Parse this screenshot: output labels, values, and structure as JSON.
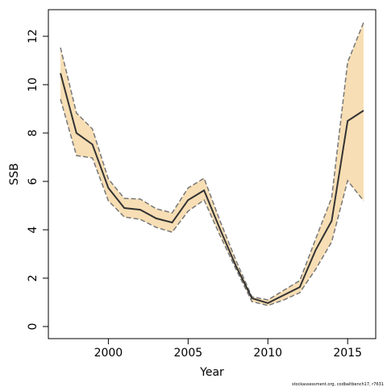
{
  "chart_data": {
    "type": "line",
    "xlabel": "Year",
    "ylabel": "SSB",
    "footnote": "stockassessment.org, codbaltbench17, r7631",
    "x": [
      1997,
      1998,
      1999,
      2000,
      2001,
      2002,
      2003,
      2004,
      2005,
      2006,
      2007,
      2008,
      2009,
      2010,
      2011,
      2012,
      2013,
      2014,
      2015,
      2016
    ],
    "values": [
      10.47,
      8.0,
      7.53,
      5.73,
      4.9,
      4.83,
      4.47,
      4.3,
      5.23,
      5.63,
      4.03,
      2.5,
      1.17,
      0.97,
      1.3,
      1.63,
      3.17,
      4.37,
      8.5,
      8.93
    ],
    "lower": [
      9.4,
      7.07,
      6.97,
      5.2,
      4.53,
      4.43,
      4.1,
      3.9,
      4.77,
      5.23,
      3.77,
      2.37,
      1.03,
      0.87,
      1.1,
      1.4,
      2.37,
      3.5,
      6.03,
      5.2
    ],
    "upper": [
      11.53,
      8.83,
      8.17,
      6.1,
      5.3,
      5.27,
      4.87,
      4.7,
      5.73,
      6.13,
      4.37,
      2.73,
      1.23,
      1.1,
      1.5,
      1.9,
      3.63,
      5.33,
      10.93,
      12.57
    ],
    "color": "#333333",
    "band_color": "#f7deb4",
    "band_line_color": "#777777",
    "xlim": [
      1996.24,
      2016.76
    ],
    "ylim": [
      -0.5,
      13.1
    ],
    "xticks": [
      2000,
      2005,
      2010,
      2015
    ],
    "yticks": [
      0,
      2,
      4,
      6,
      8,
      10,
      12
    ]
  }
}
